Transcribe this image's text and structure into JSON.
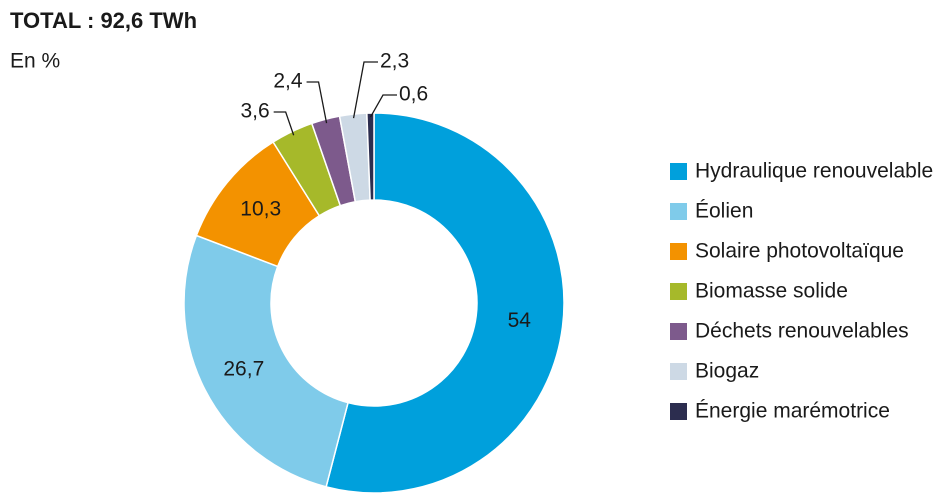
{
  "chart_data": {
    "type": "donut",
    "title": "TOTAL : 92,6 TWh",
    "subtitle": "En %",
    "categories": [
      "Hydraulique renouvelable",
      "Éolien",
      "Solaire photovoltaïque",
      "Biomasse solide",
      "Déchets renouvelables",
      "Biogaz",
      "Énergie marémotrice"
    ],
    "values": [
      54,
      26.7,
      10.3,
      3.6,
      2.4,
      2.3,
      0.6
    ],
    "value_labels": [
      "54",
      "26,7",
      "10,3",
      "3,6",
      "2,4",
      "2,3",
      "0,6"
    ],
    "colors": [
      "#00a0dc",
      "#7fcbea",
      "#f39200",
      "#a6b92a",
      "#7d5a8c",
      "#cdd9e5",
      "#2c2d4f"
    ],
    "legend": "right"
  }
}
